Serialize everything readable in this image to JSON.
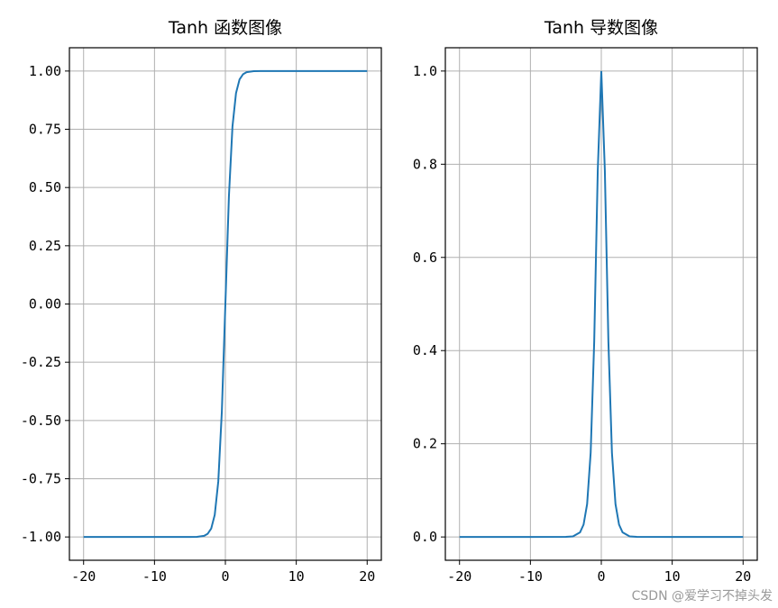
{
  "chart_data": [
    {
      "type": "line",
      "title": "Tanh 函数图像",
      "xlabel": "",
      "ylabel": "",
      "xlim": [
        -22,
        22
      ],
      "ylim": [
        -1.1,
        1.1
      ],
      "xticks": [
        -20,
        -10,
        0,
        10,
        20
      ],
      "xtick_labels": [
        "-20",
        "-10",
        "0",
        "10",
        "20"
      ],
      "yticks": [
        -1.0,
        -0.75,
        -0.5,
        -0.25,
        0.0,
        0.25,
        0.5,
        0.75,
        1.0
      ],
      "ytick_labels": [
        "-1.00",
        "-0.75",
        "-0.50",
        "-0.25",
        "0.00",
        "0.25",
        "0.50",
        "0.75",
        "1.00"
      ],
      "grid": true,
      "color": "#1f77b4",
      "series": [
        {
          "x": [
            -20,
            -10,
            -5,
            -4,
            -3,
            -2.5,
            -2,
            -1.5,
            -1,
            -0.5,
            0,
            0.5,
            1,
            1.5,
            2,
            2.5,
            3,
            4,
            5,
            10,
            20
          ],
          "y": [
            -1.0,
            -1.0,
            -0.9999,
            -0.9993,
            -0.9951,
            -0.9866,
            -0.964,
            -0.9051,
            -0.7616,
            -0.4621,
            0.0,
            0.4621,
            0.7616,
            0.9051,
            0.964,
            0.9866,
            0.9951,
            0.9993,
            0.9999,
            1.0,
            1.0
          ]
        }
      ]
    },
    {
      "type": "line",
      "title": "Tanh 导数图像",
      "xlabel": "",
      "ylabel": "",
      "xlim": [
        -22,
        22
      ],
      "ylim": [
        -0.05,
        1.05
      ],
      "xticks": [
        -20,
        -10,
        0,
        10,
        20
      ],
      "xtick_labels": [
        "-20",
        "-10",
        "0",
        "10",
        "20"
      ],
      "yticks": [
        0.0,
        0.2,
        0.4,
        0.6,
        0.8,
        1.0
      ],
      "ytick_labels": [
        "0.0",
        "0.2",
        "0.4",
        "0.6",
        "0.8",
        "1.0"
      ],
      "grid": true,
      "color": "#1f77b4",
      "series": [
        {
          "x": [
            -20,
            -10,
            -5,
            -4,
            -3,
            -2.5,
            -2,
            -1.5,
            -1,
            -0.5,
            0,
            0.5,
            1,
            1.5,
            2,
            2.5,
            3,
            4,
            5,
            10,
            20
          ],
          "y": [
            0.0,
            0.0,
            0.0002,
            0.0013,
            0.0099,
            0.0266,
            0.0707,
            0.1807,
            0.42,
            0.7864,
            1.0,
            0.7864,
            0.42,
            0.1807,
            0.0707,
            0.0266,
            0.0099,
            0.0013,
            0.0002,
            0.0,
            0.0
          ]
        }
      ]
    }
  ],
  "watermark": "CSDN @爱学习不掉头发"
}
